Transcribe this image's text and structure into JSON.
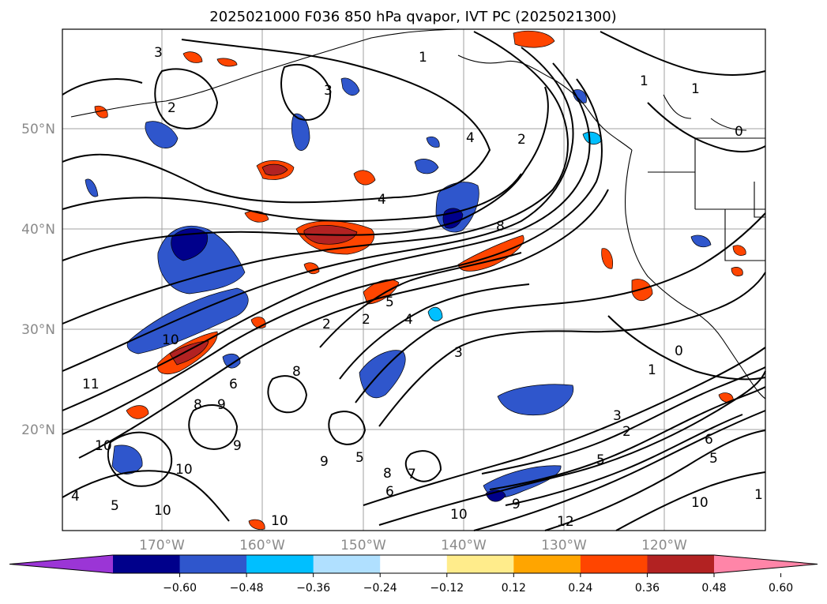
{
  "title": "2025021000 F036 850 hPa qvapor, IVT PC (2025021300)",
  "lat_labels": [
    "50°N",
    "40°N",
    "30°N",
    "20°N"
  ],
  "lon_labels": [
    "170°W",
    "160°W",
    "150°W",
    "140°W",
    "130°W",
    "120°W"
  ],
  "colorbar": {
    "ticks": [
      "−0.60",
      "−0.48",
      "−0.36",
      "−0.24",
      "−0.12",
      "0.12",
      "0.24",
      "0.36",
      "0.48",
      "0.60"
    ],
    "colors": [
      "#9b35d6",
      "#00008b",
      "#2f56cc",
      "#00bfff",
      "#b0e0ff",
      "#ffffff",
      "#ffec8b",
      "#ffa500",
      "#ff4500",
      "#b22222",
      "#ff85a8"
    ]
  },
  "contour_labels": [
    "3",
    "2",
    "3",
    "1",
    "4",
    "2",
    "1",
    "0",
    "1",
    "4",
    "8",
    "2",
    "4",
    "3",
    "2",
    "10",
    "11",
    "5",
    "8",
    "9",
    "6",
    "8",
    "10",
    "9",
    "5",
    "8",
    "9",
    "7",
    "6",
    "4",
    "5",
    "10",
    "10",
    "10",
    "10",
    "12",
    "3",
    "2",
    "5",
    "6",
    "5",
    "9",
    "10",
    "1",
    "0",
    "1"
  ],
  "colors": {
    "negative_blue": "#2f56cc",
    "dark_blue": "#00008b",
    "light_blue": "#00bfff",
    "positive_red": "#ff4500",
    "dark_red": "#b22222",
    "orange": "#ffa500"
  }
}
